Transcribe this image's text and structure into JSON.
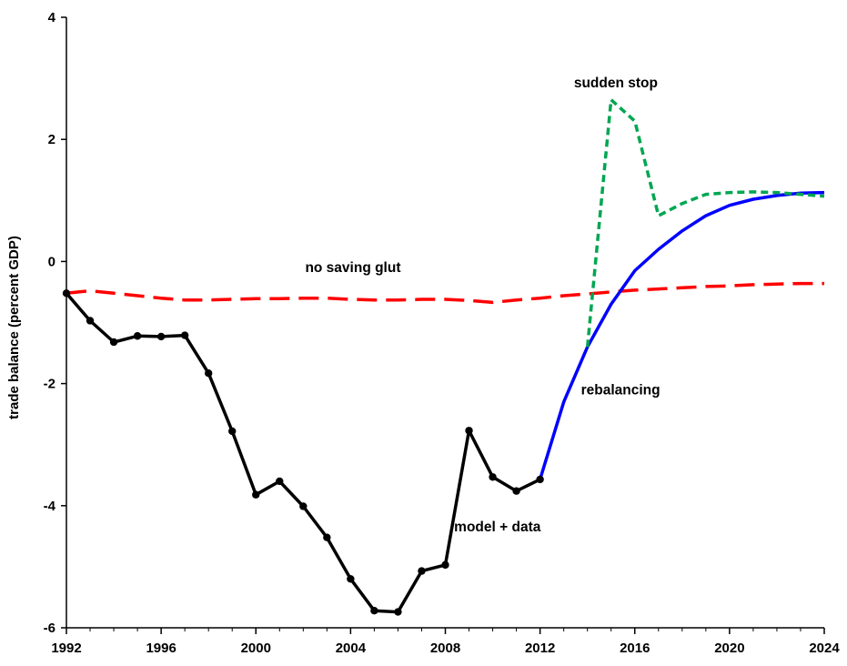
{
  "chart_data": {
    "type": "line",
    "title": "",
    "xlabel": "",
    "ylabel": "trade balance (percent GDP)",
    "xlim": [
      1992,
      2024
    ],
    "ylim": [
      -6,
      4
    ],
    "xticks": [
      1992,
      1996,
      2000,
      2004,
      2008,
      2012,
      2016,
      2020,
      2024
    ],
    "yticks": [
      -6,
      -4,
      -2,
      0,
      2,
      4
    ],
    "grid": false,
    "legend": "none",
    "series": [
      {
        "key": "model_data",
        "label": "model + data",
        "color": "#000000",
        "style": "solid-markers",
        "x": [
          1992,
          1993,
          1994,
          1995,
          1996,
          1997,
          1998,
          1999,
          2000,
          2001,
          2002,
          2003,
          2004,
          2005,
          2006,
          2007,
          2008,
          2009,
          2010,
          2011,
          2012
        ],
        "y": [
          -0.52,
          -0.97,
          -1.32,
          -1.22,
          -1.23,
          -1.21,
          -1.83,
          -2.78,
          -3.82,
          -3.6,
          -4.01,
          -4.52,
          -5.2,
          -5.72,
          -5.74,
          -5.07,
          -4.97,
          -2.77,
          -3.53,
          -3.76,
          -3.57
        ]
      },
      {
        "key": "no_saving_glut",
        "label": "no saving glut",
        "color": "#ff0000",
        "style": "long-dash",
        "x": [
          1992,
          1993,
          1994,
          1995,
          1996,
          1997,
          1998,
          1999,
          2000,
          2001,
          2002,
          2003,
          2004,
          2005,
          2006,
          2007,
          2008,
          2009,
          2010,
          2011,
          2012,
          2013,
          2014,
          2015,
          2016,
          2017,
          2018,
          2019,
          2020,
          2021,
          2022,
          2023,
          2024
        ],
        "y": [
          -0.52,
          -0.48,
          -0.52,
          -0.56,
          -0.6,
          -0.63,
          -0.63,
          -0.62,
          -0.61,
          -0.61,
          -0.6,
          -0.6,
          -0.62,
          -0.63,
          -0.63,
          -0.62,
          -0.62,
          -0.64,
          -0.67,
          -0.63,
          -0.6,
          -0.56,
          -0.53,
          -0.5,
          -0.47,
          -0.45,
          -0.43,
          -0.41,
          -0.4,
          -0.38,
          -0.37,
          -0.36,
          -0.36
        ]
      },
      {
        "key": "rebalancing",
        "label": "rebalancing",
        "color": "#0000ff",
        "style": "solid",
        "x": [
          2012,
          2013,
          2014,
          2015,
          2016,
          2017,
          2018,
          2019,
          2020,
          2021,
          2022,
          2023,
          2024
        ],
        "y": [
          -3.57,
          -2.3,
          -1.4,
          -0.7,
          -0.15,
          0.2,
          0.5,
          0.75,
          0.92,
          1.02,
          1.08,
          1.12,
          1.13
        ]
      },
      {
        "key": "sudden_stop",
        "label": "sudden stop",
        "color": "#00a651",
        "style": "short-dash",
        "x": [
          2014,
          2015,
          2016,
          2017,
          2018,
          2019,
          2020,
          2021,
          2022,
          2023,
          2024
        ],
        "y": [
          -1.4,
          2.65,
          2.3,
          0.75,
          0.95,
          1.1,
          1.13,
          1.14,
          1.13,
          1.1,
          1.07
        ]
      }
    ],
    "annotations": [
      {
        "text": "sudden stop",
        "x": 2015.2,
        "y": 2.85
      },
      {
        "text": "no saving glut",
        "x": 2004.1,
        "y": -0.17
      },
      {
        "text": "rebalancing",
        "x": 2015.4,
        "y": -2.18
      },
      {
        "text": "model + data",
        "x": 2010.2,
        "y": -4.42
      }
    ]
  }
}
